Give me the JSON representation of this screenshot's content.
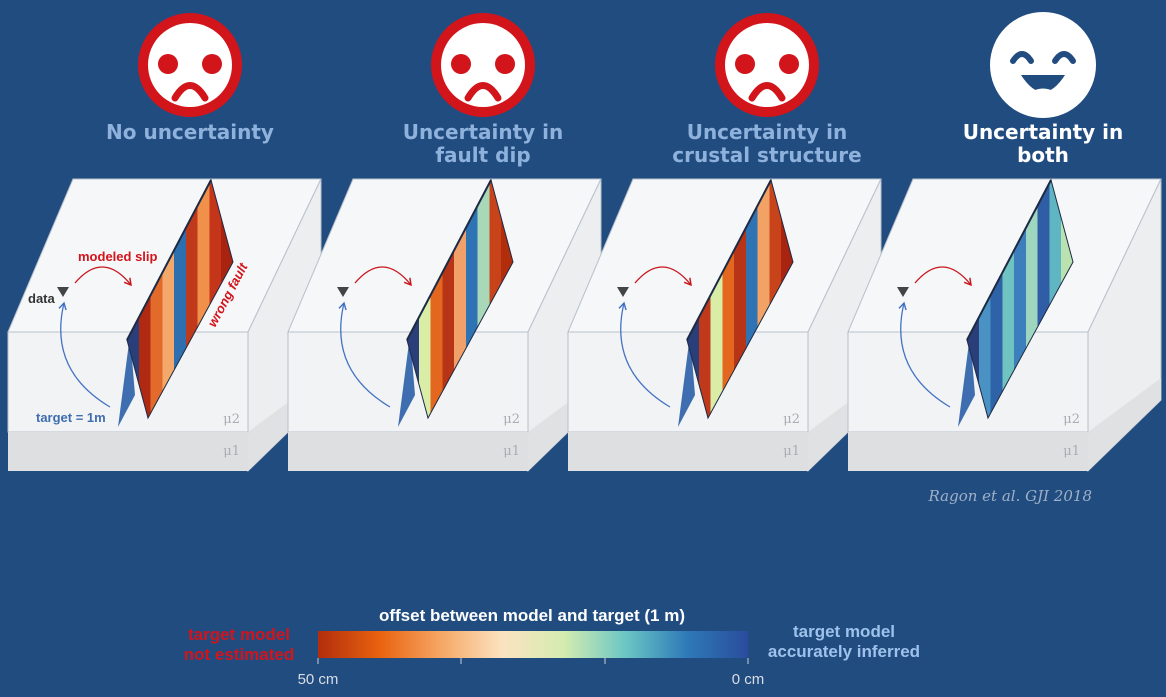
{
  "panels": [
    {
      "title_lines": [
        "No uncertainty"
      ],
      "face": "sad",
      "fault_gradient": "grad-strong"
    },
    {
      "title_lines": [
        "Uncertainty in",
        "fault dip"
      ],
      "face": "sad",
      "fault_gradient": "grad-mid"
    },
    {
      "title_lines": [
        "Uncertainty in",
        "crustal structure"
      ],
      "face": "sad",
      "fault_gradient": "grad-mid2"
    },
    {
      "title_lines": [
        "Uncertainty in",
        "both"
      ],
      "face": "happy",
      "fault_gradient": "grad-good"
    }
  ],
  "annotations": {
    "modeled_slip": "modeled slip",
    "data": "data",
    "wrong_fault": "wrong fault",
    "target": "target = 1m",
    "mu2": "μ2",
    "mu1": "μ1"
  },
  "citation": "Ragon et al. GJI 2018",
  "colorbar": {
    "title": "offset between model and target (1 m)",
    "left_label_lines": [
      "target model",
      "not estimated"
    ],
    "right_label_lines": [
      "target model",
      "accurately inferred"
    ],
    "tick_left": "50 cm",
    "tick_right": "0 cm",
    "stops": [
      "#b22d0c",
      "#e8620f",
      "#f6a765",
      "#fbe3c0",
      "#d4ecb0",
      "#6cc7c4",
      "#2e7ab8",
      "#2a4c9c"
    ]
  },
  "colors": {
    "background": "#214c80",
    "sad_title": "#8fb2dc",
    "happy_title": "#ffffff",
    "sad_face": "#d2141b",
    "happy_face": "#ffffff",
    "bad_text": "#d2141b",
    "good_text": "#9ec2ec",
    "target_arrow": "#4472c4",
    "slip_arrow": "#c8151c"
  }
}
